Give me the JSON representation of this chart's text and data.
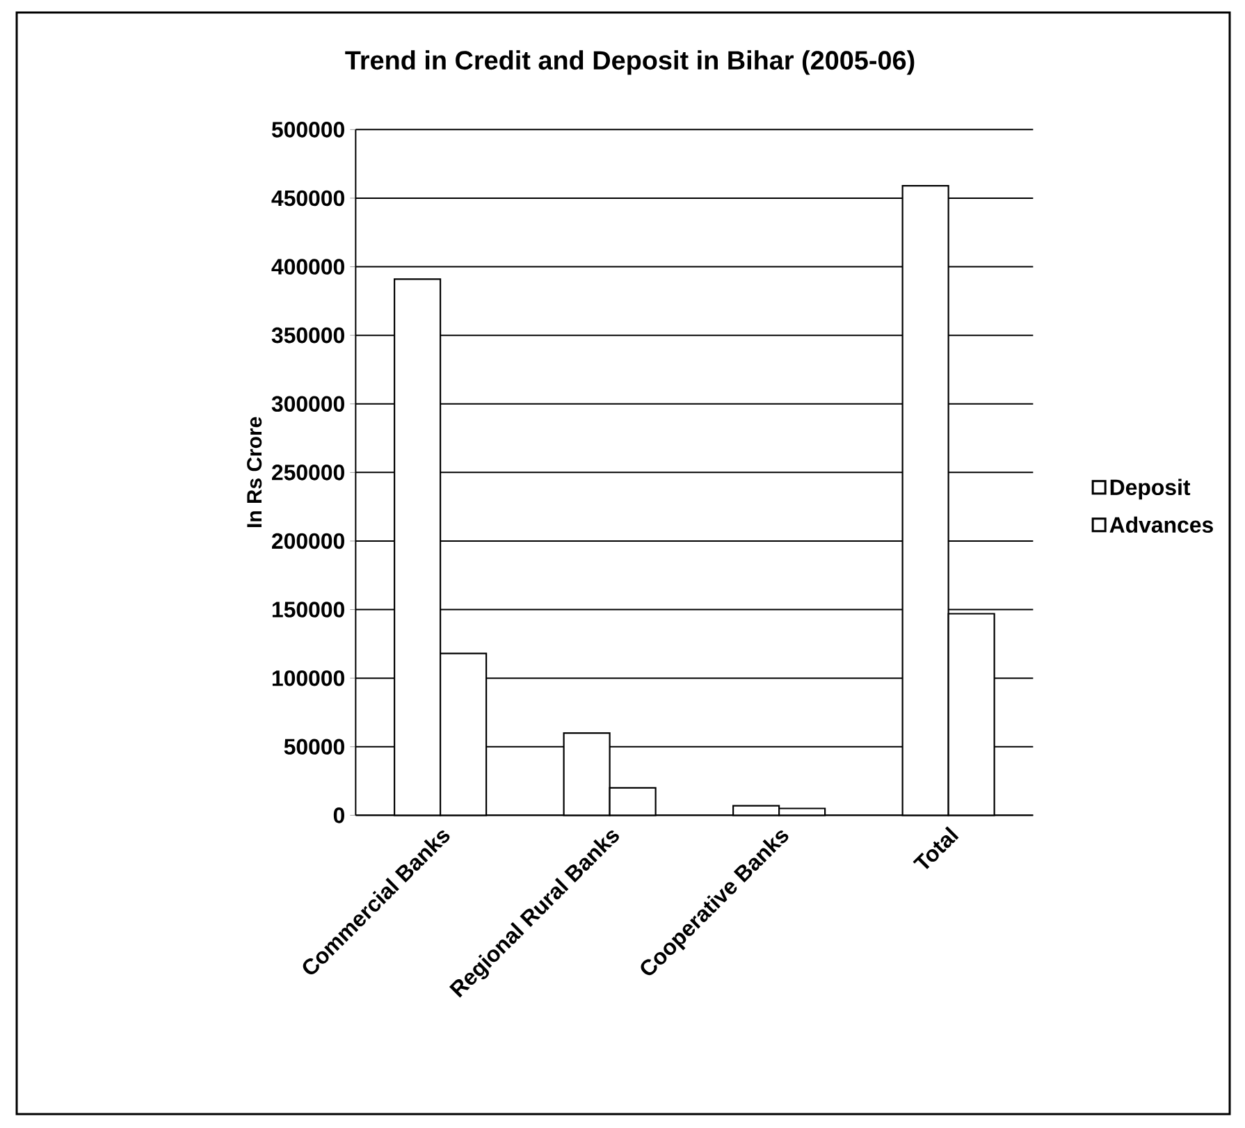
{
  "chart_data": {
    "type": "bar",
    "title": "Trend in Credit and Deposit in Bihar (2005-06)",
    "ylabel": "In Rs Crore",
    "categories": [
      "Commercial Banks",
      "Regional Rural Banks",
      "Cooperative Banks",
      "Total"
    ],
    "series": [
      {
        "name": "Deposit",
        "color": "#ffffff",
        "values": [
          391000,
          60000,
          7000,
          459000
        ]
      },
      {
        "name": "Advances",
        "color": "#ffffff",
        "values": [
          118000,
          20000,
          5000,
          147000
        ]
      }
    ],
    "ylim": [
      0,
      500000
    ],
    "yticks": [
      0,
      50000,
      100000,
      150000,
      200000,
      250000,
      300000,
      350000,
      400000,
      450000,
      500000
    ],
    "grid": "y",
    "legend": "right"
  }
}
